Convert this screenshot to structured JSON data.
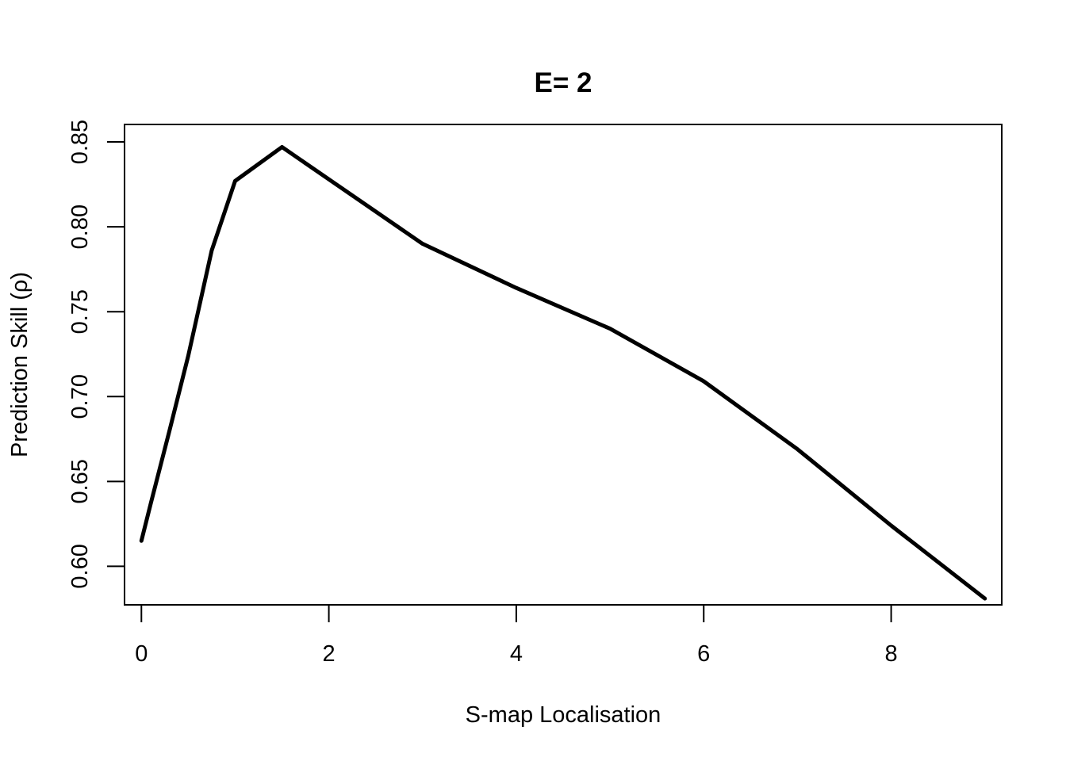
{
  "chart_data": {
    "type": "line",
    "title": "E= 2",
    "xlabel": "S-map Localisation",
    "ylabel": "Prediction Skill (ρ)",
    "xlim": [
      -0.18,
      9.18
    ],
    "ylim": [
      0.5773,
      0.8603
    ],
    "xticks": [
      0,
      2,
      4,
      6,
      8
    ],
    "yticks": [
      0.6,
      0.65,
      0.7,
      0.75,
      0.8,
      0.85
    ],
    "xtick_labels": [
      "0",
      "2",
      "4",
      "6",
      "8"
    ],
    "ytick_labels": [
      "0.60",
      "0.65",
      "0.70",
      "0.75",
      "0.80",
      "0.85"
    ],
    "grid": false,
    "series": [
      {
        "color": "#000000",
        "x": [
          0,
          0.1,
          0.3,
          0.5,
          0.75,
          1,
          1.5,
          2,
          3,
          4,
          5,
          6,
          7,
          8,
          9
        ],
        "y": [
          0.615,
          0.637,
          0.68,
          0.724,
          0.786,
          0.827,
          0.847,
          0.828,
          0.79,
          0.764,
          0.74,
          0.709,
          0.669,
          0.624,
          0.581
        ]
      }
    ]
  }
}
